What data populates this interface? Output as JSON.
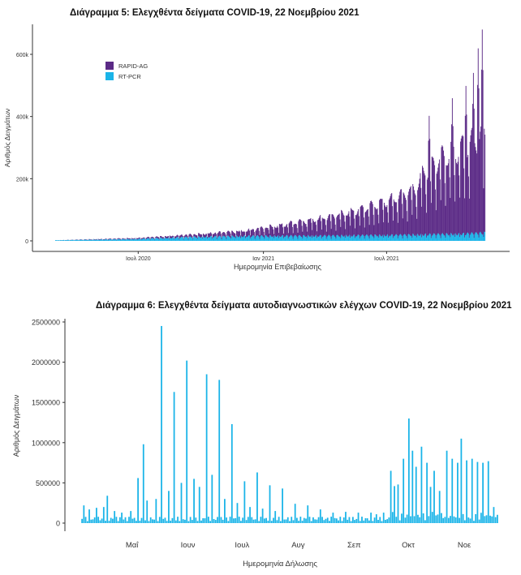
{
  "charts": {
    "c5": {
      "title": "Διάγραμμα 5: Ελεγχθέντα δείγματα COVID-19, 22 Νοεμβρίου 2021"
    },
    "c6": {
      "title": "Διάγραμμα 6: Ελεγχθέντα δείγματα αυτοδιαγνωστικών ελέγχων COVID-19, 22 Νοεμβρίου 2021"
    }
  },
  "chart_data": [
    {
      "type": "bar",
      "stacked": true,
      "title": "Διάγραμμα 5: Ελεγχθέντα δείγματα COVID-19, 22 Νοεμβρίου 2021",
      "xlabel": "Ημερομηνία Επιβεβαίωσης",
      "ylabel": "Αριθμός Δειγμάτων",
      "x_ticks": [
        "Ιουλ 2020",
        "Ιαν 2021",
        "Ιουλ 2021"
      ],
      "y_ticks": [
        "0",
        "200k",
        "400k",
        "600k"
      ],
      "ylim": [
        0,
        680000
      ],
      "x_range": [
        "2020-03-01",
        "2021-11-22"
      ],
      "grid": false,
      "legend": "top-left",
      "series": [
        {
          "name": "RAPID-AG",
          "color": "#5b2a86",
          "trend": [
            [
              0,
              0
            ],
            [
              120,
              3000
            ],
            [
              200,
              8000
            ],
            [
              280,
              18000
            ],
            [
              330,
              35000
            ],
            [
              400,
              60000
            ],
            [
              450,
              85000
            ],
            [
              500,
              120000
            ],
            [
              530,
              150000
            ],
            [
              540,
              200000
            ],
            [
              570,
              250000
            ],
            [
              600,
              280000
            ],
            [
              620,
              300000
            ],
            [
              631,
              320000
            ]
          ],
          "peaks": [
            [
              "2021-09-01",
              380000
            ],
            [
              "2021-10-05",
              440000
            ],
            [
              "2021-10-25",
              480000
            ],
            [
              "2021-11-05",
              520000
            ],
            [
              "2021-11-12",
              600000
            ],
            [
              "2021-11-18",
              660000
            ]
          ]
        },
        {
          "name": "RT-PCR",
          "color": "#1ab4e8",
          "trend": [
            [
              0,
              2000
            ],
            [
              120,
              6000
            ],
            [
              200,
              12000
            ],
            [
              280,
              15000
            ],
            [
              400,
              16000
            ],
            [
              500,
              18000
            ],
            [
              600,
              22000
            ],
            [
              631,
              25000
            ]
          ]
        }
      ]
    },
    {
      "type": "bar",
      "title": "Διάγραμμα 6: Ελεγχθέντα δείγματα αυτοδιαγνωστικών ελέγχων COVID-19, 22 Νοεμβρίου 2021",
      "xlabel": "Ημερομηνία Δήλωσης",
      "ylabel": "Αριθμός Δειγμάτων",
      "x_ticks": [
        "Μαΐ",
        "Ιουν",
        "Ιουλ",
        "Αυγ",
        "Σεπ",
        "Οκτ",
        "Νοε"
      ],
      "y_ticks": [
        "0",
        "500000",
        "1000000",
        "1500000",
        "2000000",
        "2500000"
      ],
      "ylim": [
        0,
        2550000
      ],
      "x_range": [
        "2021-04-06",
        "2021-11-22"
      ],
      "grid": false,
      "series": [
        {
          "name": "",
          "color": "#1ab4e8",
          "spikes": [
            [
              "2021-04-07",
              220000
            ],
            [
              "2021-04-10",
              170000
            ],
            [
              "2021-04-14",
              190000
            ],
            [
              "2021-04-18",
              200000
            ],
            [
              "2021-04-20",
              340000
            ],
            [
              "2021-04-24",
              150000
            ],
            [
              "2021-04-28",
              130000
            ],
            [
              "2021-05-03",
              150000
            ],
            [
              "2021-05-07",
              560000
            ],
            [
              "2021-05-10",
              980000
            ],
            [
              "2021-05-12",
              280000
            ],
            [
              "2021-05-17",
              300000
            ],
            [
              "2021-05-20",
              2450000
            ],
            [
              "2021-05-24",
              400000
            ],
            [
              "2021-05-27",
              1630000
            ],
            [
              "2021-05-31",
              500000
            ],
            [
              "2021-06-03",
              2020000
            ],
            [
              "2021-06-07",
              550000
            ],
            [
              "2021-06-10",
              450000
            ],
            [
              "2021-06-14",
              1850000
            ],
            [
              "2021-06-17",
              600000
            ],
            [
              "2021-06-21",
              1780000
            ],
            [
              "2021-06-24",
              300000
            ],
            [
              "2021-06-28",
              1230000
            ],
            [
              "2021-07-01",
              250000
            ],
            [
              "2021-07-05",
              520000
            ],
            [
              "2021-07-08",
              200000
            ],
            [
              "2021-07-12",
              630000
            ],
            [
              "2021-07-15",
              180000
            ],
            [
              "2021-07-19",
              470000
            ],
            [
              "2021-07-22",
              150000
            ],
            [
              "2021-07-26",
              430000
            ],
            [
              "2021-08-02",
              240000
            ],
            [
              "2021-08-09",
              220000
            ],
            [
              "2021-08-16",
              170000
            ],
            [
              "2021-08-23",
              130000
            ],
            [
              "2021-08-30",
              140000
            ],
            [
              "2021-09-06",
              130000
            ],
            [
              "2021-09-13",
              130000
            ],
            [
              "2021-09-16",
              110000
            ],
            [
              "2021-09-20",
              130000
            ],
            [
              "2021-09-24",
              650000
            ],
            [
              "2021-09-26",
              460000
            ],
            [
              "2021-09-28",
              480000
            ],
            [
              "2021-10-01",
              800000
            ],
            [
              "2021-10-04",
              1300000
            ],
            [
              "2021-10-06",
              900000
            ],
            [
              "2021-10-08",
              700000
            ],
            [
              "2021-10-11",
              950000
            ],
            [
              "2021-10-14",
              750000
            ],
            [
              "2021-10-16",
              450000
            ],
            [
              "2021-10-18",
              650000
            ],
            [
              "2021-10-21",
              400000
            ],
            [
              "2021-10-25",
              900000
            ],
            [
              "2021-10-28",
              800000
            ],
            [
              "2021-10-31",
              750000
            ],
            [
              "2021-11-02",
              1050000
            ],
            [
              "2021-11-05",
              780000
            ],
            [
              "2021-11-08",
              800000
            ],
            [
              "2021-11-11",
              760000
            ],
            [
              "2021-11-14",
              750000
            ],
            [
              "2021-11-17",
              770000
            ],
            [
              "2021-11-20",
              200000
            ]
          ]
        }
      ]
    }
  ]
}
